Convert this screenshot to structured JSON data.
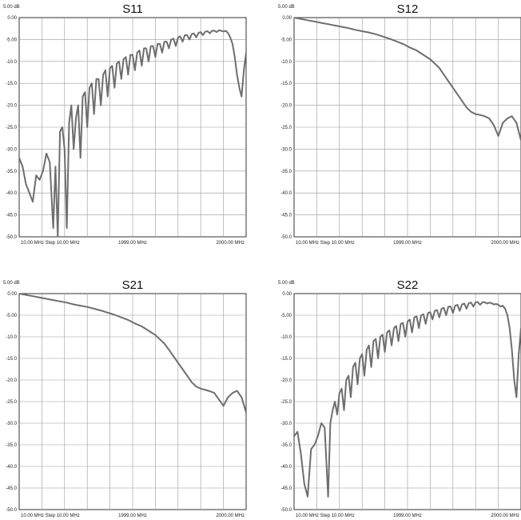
{
  "chart_data": [
    {
      "type": "line",
      "title": "S11",
      "y_top_label": "5.00 dB",
      "yticks": [
        "0.00",
        "-5.00",
        "-10.0",
        "-15.0",
        "-20.0",
        "-25.0",
        "-30.0",
        "-35.0",
        "-40.0",
        "-45.0",
        "-50.0"
      ],
      "xtick_labels": [
        "10.00 MHz Step 10.00 MHz",
        "1999.00 MHz",
        "2000.00 MHz"
      ],
      "ylim": [
        -50,
        0
      ],
      "xlim": [
        0,
        10
      ],
      "grid": true,
      "color": "#6e6e6e",
      "series": [
        {
          "x": [
            0,
            0.15,
            0.3,
            0.45,
            0.6,
            0.75,
            0.9,
            1.05,
            1.2,
            1.35,
            1.5,
            1.6,
            1.7,
            1.8,
            1.9,
            2.0,
            2.1,
            2.2,
            2.3,
            2.4,
            2.5,
            2.6,
            2.7,
            2.8,
            2.9,
            3.0,
            3.1,
            3.2,
            3.3,
            3.4,
            3.5,
            3.6,
            3.7,
            3.8,
            3.9,
            4.0,
            4.1,
            4.2,
            4.3,
            4.4,
            4.5,
            4.6,
            4.7,
            4.8,
            4.9,
            5.0,
            5.1,
            5.2,
            5.3,
            5.4,
            5.5,
            5.6,
            5.7,
            5.8,
            5.9,
            6.0,
            6.1,
            6.2,
            6.3,
            6.4,
            6.5,
            6.6,
            6.7,
            6.8,
            6.9,
            7.0,
            7.1,
            7.2,
            7.3,
            7.4,
            7.5,
            7.6,
            7.7,
            7.8,
            7.9,
            8.0,
            8.1,
            8.2,
            8.3,
            8.4,
            8.5,
            8.6,
            8.7,
            8.8,
            8.9,
            9.0,
            9.1,
            9.2,
            9.3,
            9.4,
            9.5,
            9.6,
            9.7,
            9.8,
            9.9,
            10.0
          ],
          "y": [
            -32,
            -34,
            -38,
            -40,
            -42,
            -36,
            -37,
            -35,
            -31,
            -33,
            -48,
            -34,
            -50,
            -26,
            -25,
            -30,
            -48,
            -24,
            -20,
            -30,
            -23,
            -20,
            -32,
            -18,
            -17,
            -25,
            -16,
            -15,
            -22,
            -14,
            -14,
            -20,
            -13,
            -12,
            -18,
            -11.5,
            -11,
            -16,
            -10.5,
            -10,
            -14,
            -9.5,
            -9,
            -13,
            -8.5,
            -8.5,
            -12,
            -8,
            -7.5,
            -11,
            -7,
            -7,
            -10,
            -6.5,
            -6.5,
            -9,
            -6,
            -6,
            -8,
            -5.5,
            -5.5,
            -7,
            -5,
            -4.8,
            -6.5,
            -4.5,
            -4.3,
            -5.5,
            -4,
            -4,
            -5,
            -3.8,
            -3.6,
            -4.5,
            -3.5,
            -3.3,
            -4,
            -3.2,
            -3.1,
            -3.6,
            -3,
            -3,
            -3.3,
            -2.9,
            -3,
            -3.2,
            -3,
            -3.5,
            -4.5,
            -6,
            -9,
            -13,
            -16,
            -18,
            -12,
            -8
          ]
        }
      ]
    },
    {
      "type": "line",
      "title": "S12",
      "y_top_label": "5.00 dB",
      "yticks": [
        "0.00",
        "-5.00",
        "-10.0",
        "-15.0",
        "-20.0",
        "-25.0",
        "-30.0",
        "-35.0",
        "-40.0",
        "-45.0",
        "-50.0"
      ],
      "xtick_labels": [
        "10.00 MHz Step 10.00 MHz",
        "1999.00 MHz",
        "2000.00 MHz"
      ],
      "ylim": [
        -50,
        0
      ],
      "xlim": [
        0,
        10
      ],
      "grid": true,
      "color": "#6e6e6e",
      "series": [
        {
          "x": [
            0,
            0.3,
            0.6,
            0.9,
            1.2,
            1.5,
            1.8,
            2.1,
            2.4,
            2.7,
            3.0,
            3.3,
            3.6,
            3.9,
            4.2,
            4.5,
            4.8,
            5.1,
            5.4,
            5.7,
            6.0,
            6.2,
            6.4,
            6.6,
            6.8,
            7.0,
            7.2,
            7.4,
            7.6,
            7.8,
            8.0,
            8.2,
            8.4,
            8.6,
            8.8,
            9.0,
            9.2,
            9.4,
            9.6,
            9.8,
            10.0
          ],
          "y": [
            0,
            -0.3,
            -0.6,
            -0.9,
            -1.2,
            -1.5,
            -1.8,
            -2.1,
            -2.4,
            -2.8,
            -3.1,
            -3.4,
            -3.8,
            -4.3,
            -4.8,
            -5.4,
            -6,
            -6.8,
            -7.5,
            -8.5,
            -9.5,
            -10.5,
            -11.5,
            -13,
            -14.5,
            -16,
            -17.5,
            -19,
            -20.5,
            -21.5,
            -22,
            -22.2,
            -22.5,
            -23,
            -24.5,
            -27,
            -24,
            -23,
            -22.5,
            -24,
            -28
          ]
        }
      ]
    },
    {
      "type": "line",
      "title": "S21",
      "y_top_label": "5.00 dB",
      "yticks": [
        "0.00",
        "-5.00",
        "-10.0",
        "-15.0",
        "-20.0",
        "-25.0",
        "-30.0",
        "-35.0",
        "-40.0",
        "-45.0",
        "-50.0"
      ],
      "xtick_labels": [
        "10.00 MHz Step 10.00 MHz",
        "1999.00 MHz",
        "2000.00 MHz"
      ],
      "ylim": [
        -50,
        0
      ],
      "xlim": [
        0,
        10
      ],
      "grid": true,
      "color": "#6e6e6e",
      "series": [
        {
          "x": [
            0,
            0.3,
            0.6,
            0.9,
            1.2,
            1.5,
            1.8,
            2.1,
            2.4,
            2.7,
            3.0,
            3.3,
            3.6,
            3.9,
            4.2,
            4.5,
            4.8,
            5.1,
            5.4,
            5.7,
            6.0,
            6.2,
            6.4,
            6.6,
            6.8,
            7.0,
            7.2,
            7.4,
            7.6,
            7.8,
            8.0,
            8.2,
            8.4,
            8.6,
            8.8,
            9.0,
            9.2,
            9.4,
            9.6,
            9.8,
            10.0
          ],
          "y": [
            0,
            -0.3,
            -0.6,
            -0.9,
            -1.2,
            -1.5,
            -1.8,
            -2.1,
            -2.5,
            -2.8,
            -3.1,
            -3.5,
            -3.9,
            -4.4,
            -4.9,
            -5.5,
            -6.1,
            -6.9,
            -7.6,
            -8.6,
            -9.6,
            -10.6,
            -11.6,
            -13,
            -14.5,
            -16,
            -17.5,
            -19,
            -20.5,
            -21.5,
            -22,
            -22.3,
            -22.6,
            -23,
            -24.5,
            -26,
            -24,
            -23,
            -22.5,
            -24,
            -27.5
          ]
        }
      ]
    },
    {
      "type": "line",
      "title": "S22",
      "y_top_label": "5.00 dB",
      "yticks": [
        "0.00",
        "-5.00",
        "-10.0",
        "-15.0",
        "-20.0",
        "-25.0",
        "-30.0",
        "-35.0",
        "-40.0",
        "-45.0",
        "-50.0"
      ],
      "xtick_labels": [
        "10.00 MHz Step 10.00 MHz",
        "1999.00 MHz",
        "2000.00 MHz"
      ],
      "ylim": [
        -50,
        0
      ],
      "xlim": [
        0,
        10
      ],
      "grid": true,
      "color": "#6e6e6e",
      "series": [
        {
          "x": [
            0,
            0.15,
            0.3,
            0.45,
            0.6,
            0.75,
            0.9,
            1.05,
            1.2,
            1.35,
            1.5,
            1.6,
            1.7,
            1.8,
            1.9,
            2.0,
            2.1,
            2.2,
            2.3,
            2.4,
            2.5,
            2.6,
            2.7,
            2.8,
            2.9,
            3.0,
            3.1,
            3.2,
            3.3,
            3.4,
            3.5,
            3.6,
            3.7,
            3.8,
            3.9,
            4.0,
            4.1,
            4.2,
            4.3,
            4.4,
            4.5,
            4.6,
            4.7,
            4.8,
            4.9,
            5.0,
            5.1,
            5.2,
            5.3,
            5.4,
            5.5,
            5.6,
            5.7,
            5.8,
            5.9,
            6.0,
            6.1,
            6.2,
            6.3,
            6.4,
            6.5,
            6.6,
            6.7,
            6.8,
            6.9,
            7.0,
            7.1,
            7.2,
            7.3,
            7.4,
            7.5,
            7.6,
            7.7,
            7.8,
            7.9,
            8.0,
            8.1,
            8.2,
            8.3,
            8.4,
            8.5,
            8.6,
            8.7,
            8.8,
            8.9,
            9.0,
            9.1,
            9.2,
            9.3,
            9.4,
            9.5,
            9.6,
            9.7,
            9.8,
            9.9,
            10.0
          ],
          "y": [
            -33,
            -32,
            -37,
            -44,
            -47,
            -36,
            -35,
            -33,
            -30,
            -31,
            -47,
            -30,
            -27,
            -25,
            -28,
            -23,
            -22,
            -27,
            -20,
            -19,
            -24,
            -17,
            -16,
            -21,
            -15,
            -14,
            -19,
            -13,
            -12,
            -17,
            -11,
            -10.5,
            -15,
            -10,
            -9.5,
            -13.5,
            -9,
            -8.5,
            -12,
            -8,
            -7.5,
            -11,
            -7,
            -6.8,
            -10,
            -6.5,
            -6,
            -9,
            -5.5,
            -5.3,
            -8,
            -5,
            -4.8,
            -7,
            -4.5,
            -4.3,
            -6,
            -4,
            -3.8,
            -5.5,
            -3.5,
            -3.3,
            -5,
            -3,
            -3,
            -4.5,
            -2.8,
            -2.6,
            -4,
            -2.5,
            -2.3,
            -3.5,
            -2.2,
            -2.1,
            -3,
            -2,
            -2,
            -2.6,
            -2,
            -2,
            -2.3,
            -2.1,
            -2.2,
            -2.5,
            -2.4,
            -2.6,
            -3,
            -2.8,
            -3.5,
            -5,
            -8,
            -13,
            -20,
            -24,
            -14,
            -8
          ]
        }
      ]
    }
  ]
}
